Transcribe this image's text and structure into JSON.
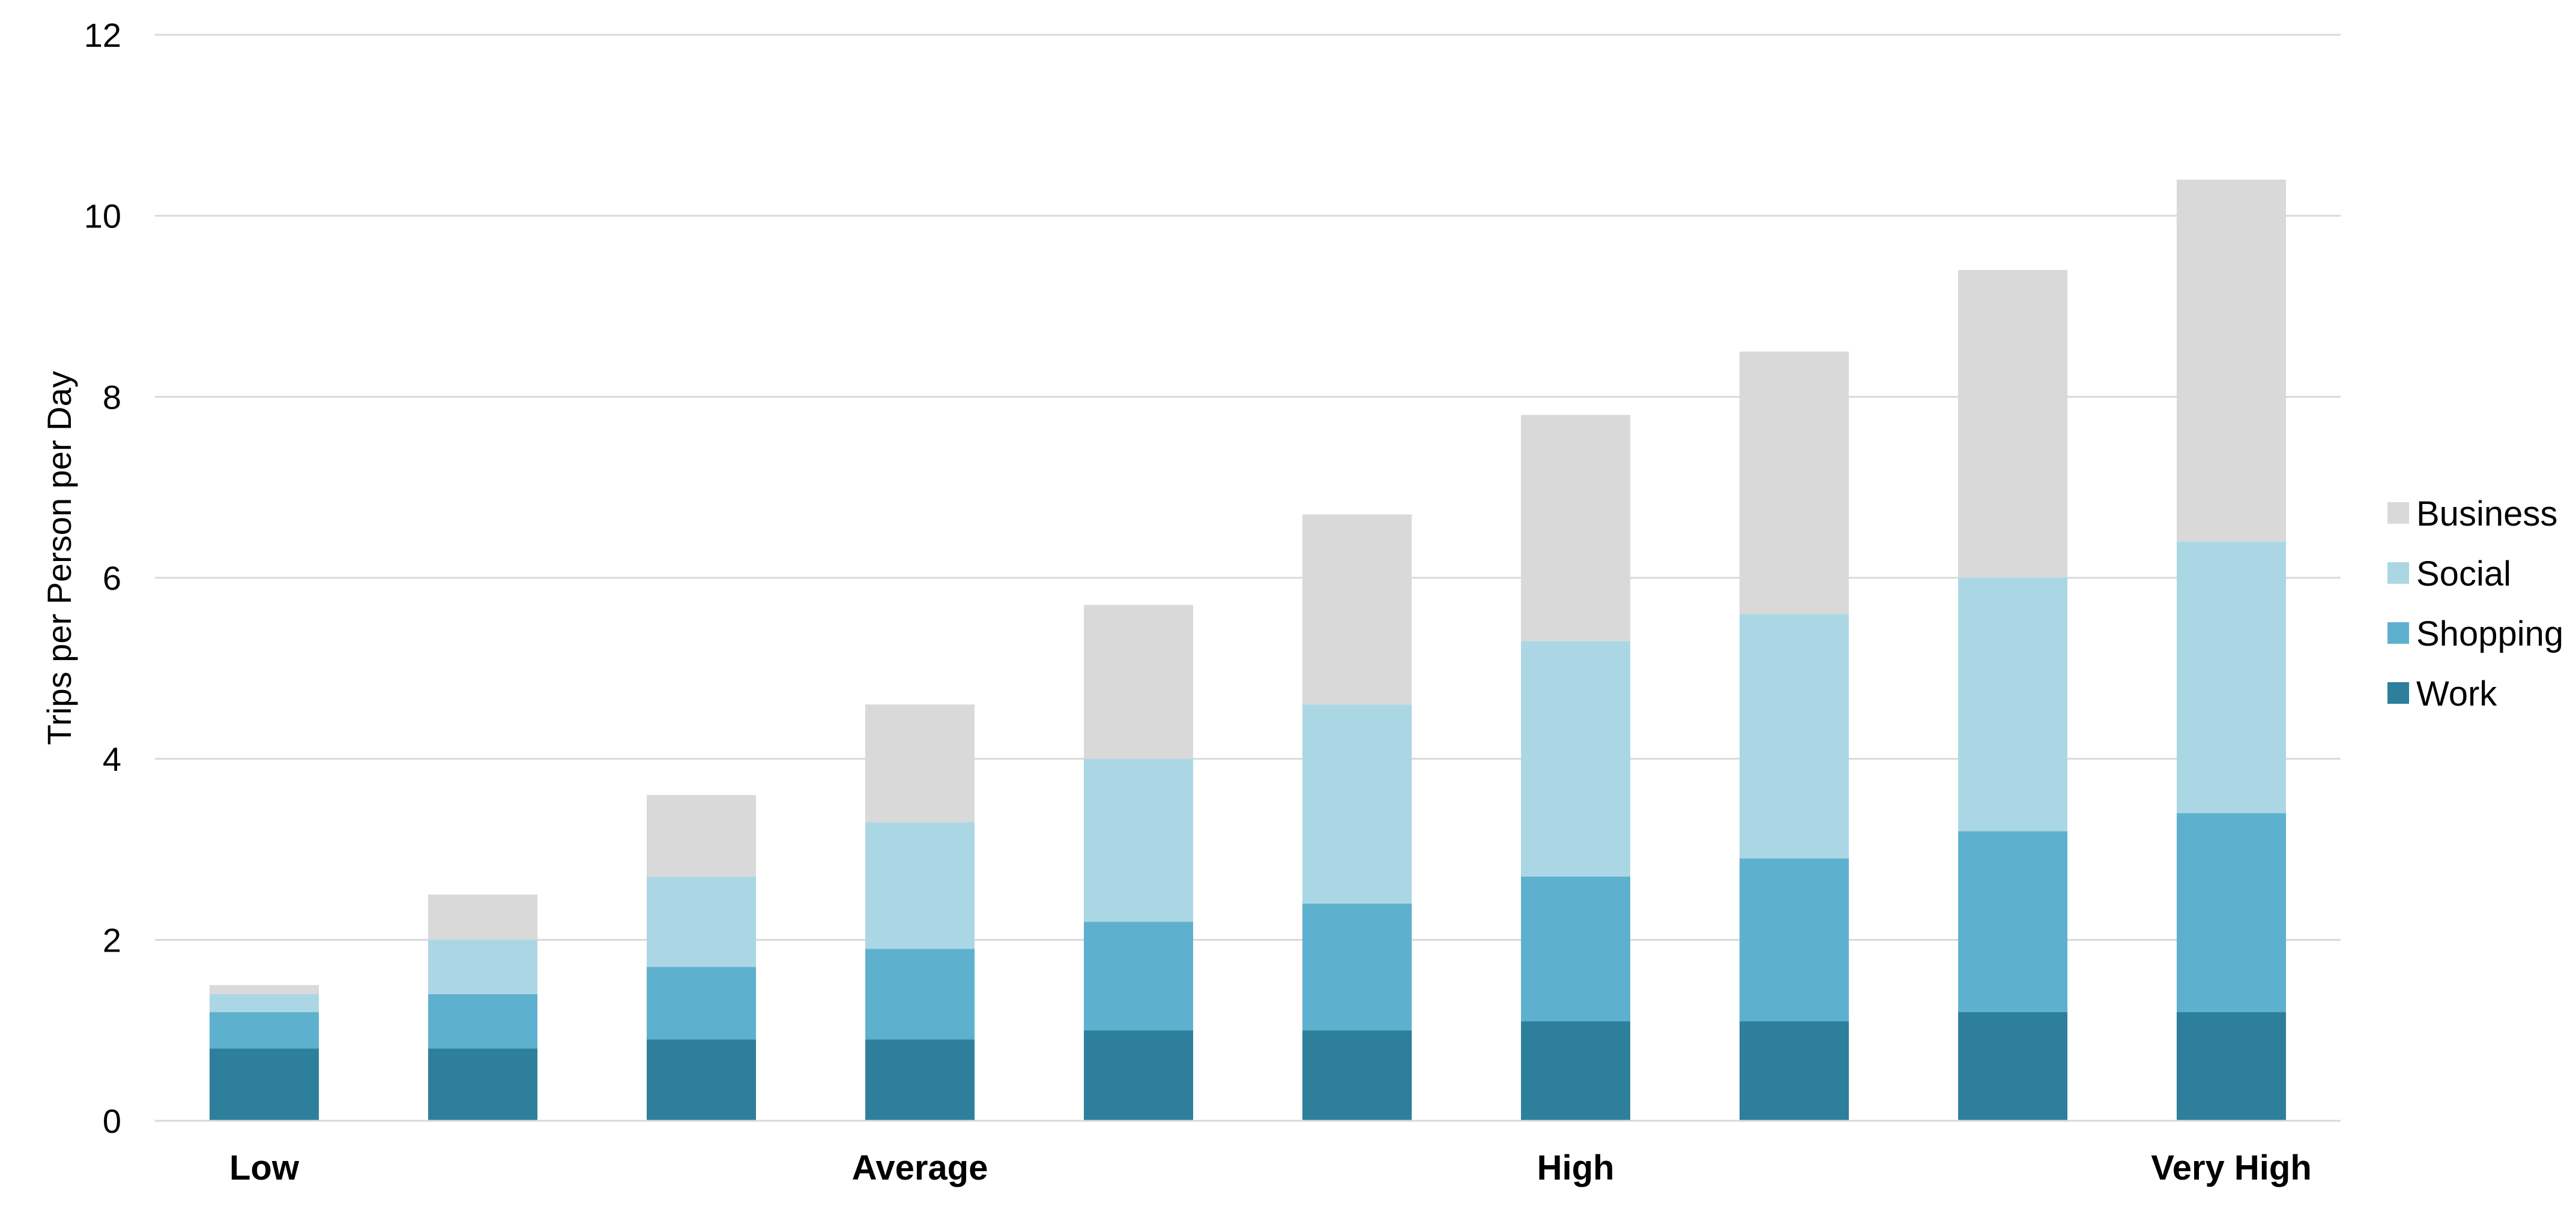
{
  "chart_data": {
    "type": "bar",
    "stacked": true,
    "categories": [
      "Low",
      "",
      "",
      "Average",
      "",
      "",
      "High",
      "",
      "",
      "Very High"
    ],
    "series": [
      {
        "name": "Work",
        "values": [
          0.8,
          0.8,
          0.9,
          0.9,
          1.0,
          1.0,
          1.1,
          1.1,
          1.2,
          1.2
        ],
        "color": "#2e7f9b"
      },
      {
        "name": "Shopping",
        "values": [
          0.4,
          0.6,
          0.8,
          1.0,
          1.2,
          1.4,
          1.6,
          1.8,
          2.0,
          2.2
        ],
        "color": "#5eb1ce"
      },
      {
        "name": "Social",
        "values": [
          0.2,
          0.6,
          1.0,
          1.4,
          1.8,
          2.2,
          2.6,
          2.7,
          2.8,
          3.0
        ],
        "color": "#abd7e5"
      },
      {
        "name": "Business",
        "values": [
          0.1,
          0.5,
          0.9,
          1.3,
          1.7,
          2.1,
          2.5,
          2.9,
          3.4,
          4.0
        ],
        "color": "#d9d9d9"
      }
    ],
    "title": "",
    "xlabel": "",
    "ylabel": "Trips per Person per Day",
    "ylim": [
      0,
      12
    ],
    "yticks": [
      0,
      2,
      4,
      6,
      8,
      10,
      12
    ],
    "grid": true,
    "legend_position": "right",
    "legend_order": [
      "Business",
      "Social",
      "Shopping",
      "Work"
    ]
  }
}
